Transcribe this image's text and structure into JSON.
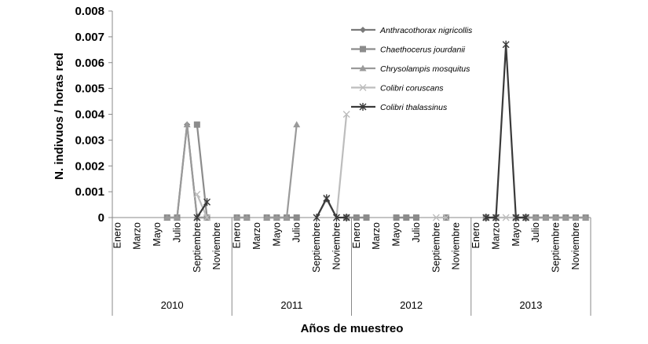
{
  "chart_data": {
    "type": "line",
    "xlabel": "Años de muestreo",
    "ylabel": "N. indivuos / horas red",
    "ylim": [
      0,
      0.008
    ],
    "yticks": [
      "0",
      "0.001",
      "0.002",
      "0.003",
      "0.004",
      "0.005",
      "0.006",
      "0.007",
      "0.008"
    ],
    "years": [
      "2010",
      "2011",
      "2012",
      "2013"
    ],
    "month_labels": [
      "Enero",
      "Marzo",
      "Mayo",
      "Julio",
      "Septiembre",
      "Noviembre"
    ],
    "legend_position": "top-right",
    "series": [
      {
        "name": "Anthracothorax nigricollis",
        "color": "#7a7a7a",
        "marker": "diamond",
        "values": [
          null,
          null,
          null,
          null,
          null,
          0,
          0,
          0.0036,
          0,
          0,
          null,
          null,
          0,
          0,
          null,
          0,
          0,
          0,
          0,
          null,
          null,
          null,
          null,
          0,
          0,
          0,
          null,
          null,
          0,
          0,
          0,
          null,
          null,
          null,
          null,
          null,
          null,
          0,
          0,
          null,
          0,
          0,
          0,
          0,
          0,
          0,
          0,
          0
        ]
      },
      {
        "name": "Chaethocerus jourdanii",
        "color": "#8c8c8c",
        "marker": "square",
        "values": [
          null,
          null,
          null,
          null,
          null,
          0,
          0,
          null,
          0.0036,
          0,
          null,
          null,
          0,
          0,
          null,
          0,
          0,
          0,
          0,
          null,
          null,
          null,
          null,
          0,
          0,
          0,
          null,
          null,
          0,
          0,
          0,
          null,
          null,
          0,
          null,
          null,
          null,
          0,
          0,
          null,
          0,
          0,
          0,
          0,
          0,
          0,
          0,
          0
        ]
      },
      {
        "name": "Chrysolampis mosquitus",
        "color": "#9a9a9a",
        "marker": "triangle",
        "values": [
          null,
          null,
          null,
          null,
          null,
          0,
          0,
          0.0036,
          0,
          0,
          null,
          null,
          0,
          0,
          null,
          0,
          0,
          0,
          0.0036,
          null,
          null,
          null,
          null,
          0,
          null,
          null,
          null,
          null,
          null,
          null,
          null,
          null,
          null,
          null,
          null,
          null,
          null,
          0,
          0,
          null,
          0,
          0,
          0,
          0,
          0,
          0,
          0,
          0
        ]
      },
      {
        "name": "Colibri coruscans",
        "color": "#bdbdbd",
        "marker": "x",
        "values": [
          null,
          null,
          null,
          null,
          null,
          null,
          null,
          null,
          0.0009,
          0,
          null,
          null,
          null,
          null,
          null,
          null,
          null,
          null,
          null,
          null,
          0,
          0.0007,
          0,
          0.004,
          null,
          null,
          null,
          null,
          null,
          null,
          null,
          null,
          0,
          0,
          null,
          null,
          null,
          null,
          0,
          0,
          0,
          null,
          null,
          null,
          null,
          null,
          null,
          null
        ]
      },
      {
        "name": "Colibri thalassinus",
        "color": "#3a3a3a",
        "marker": "star",
        "values": [
          null,
          null,
          null,
          null,
          null,
          null,
          null,
          null,
          0,
          0.0006,
          null,
          null,
          null,
          null,
          null,
          null,
          null,
          null,
          null,
          null,
          0,
          0.00075,
          0,
          0,
          null,
          null,
          null,
          null,
          null,
          null,
          null,
          null,
          null,
          null,
          null,
          null,
          null,
          0,
          0,
          0.0067,
          0,
          0,
          null,
          null,
          null,
          null,
          null,
          null
        ]
      }
    ]
  }
}
